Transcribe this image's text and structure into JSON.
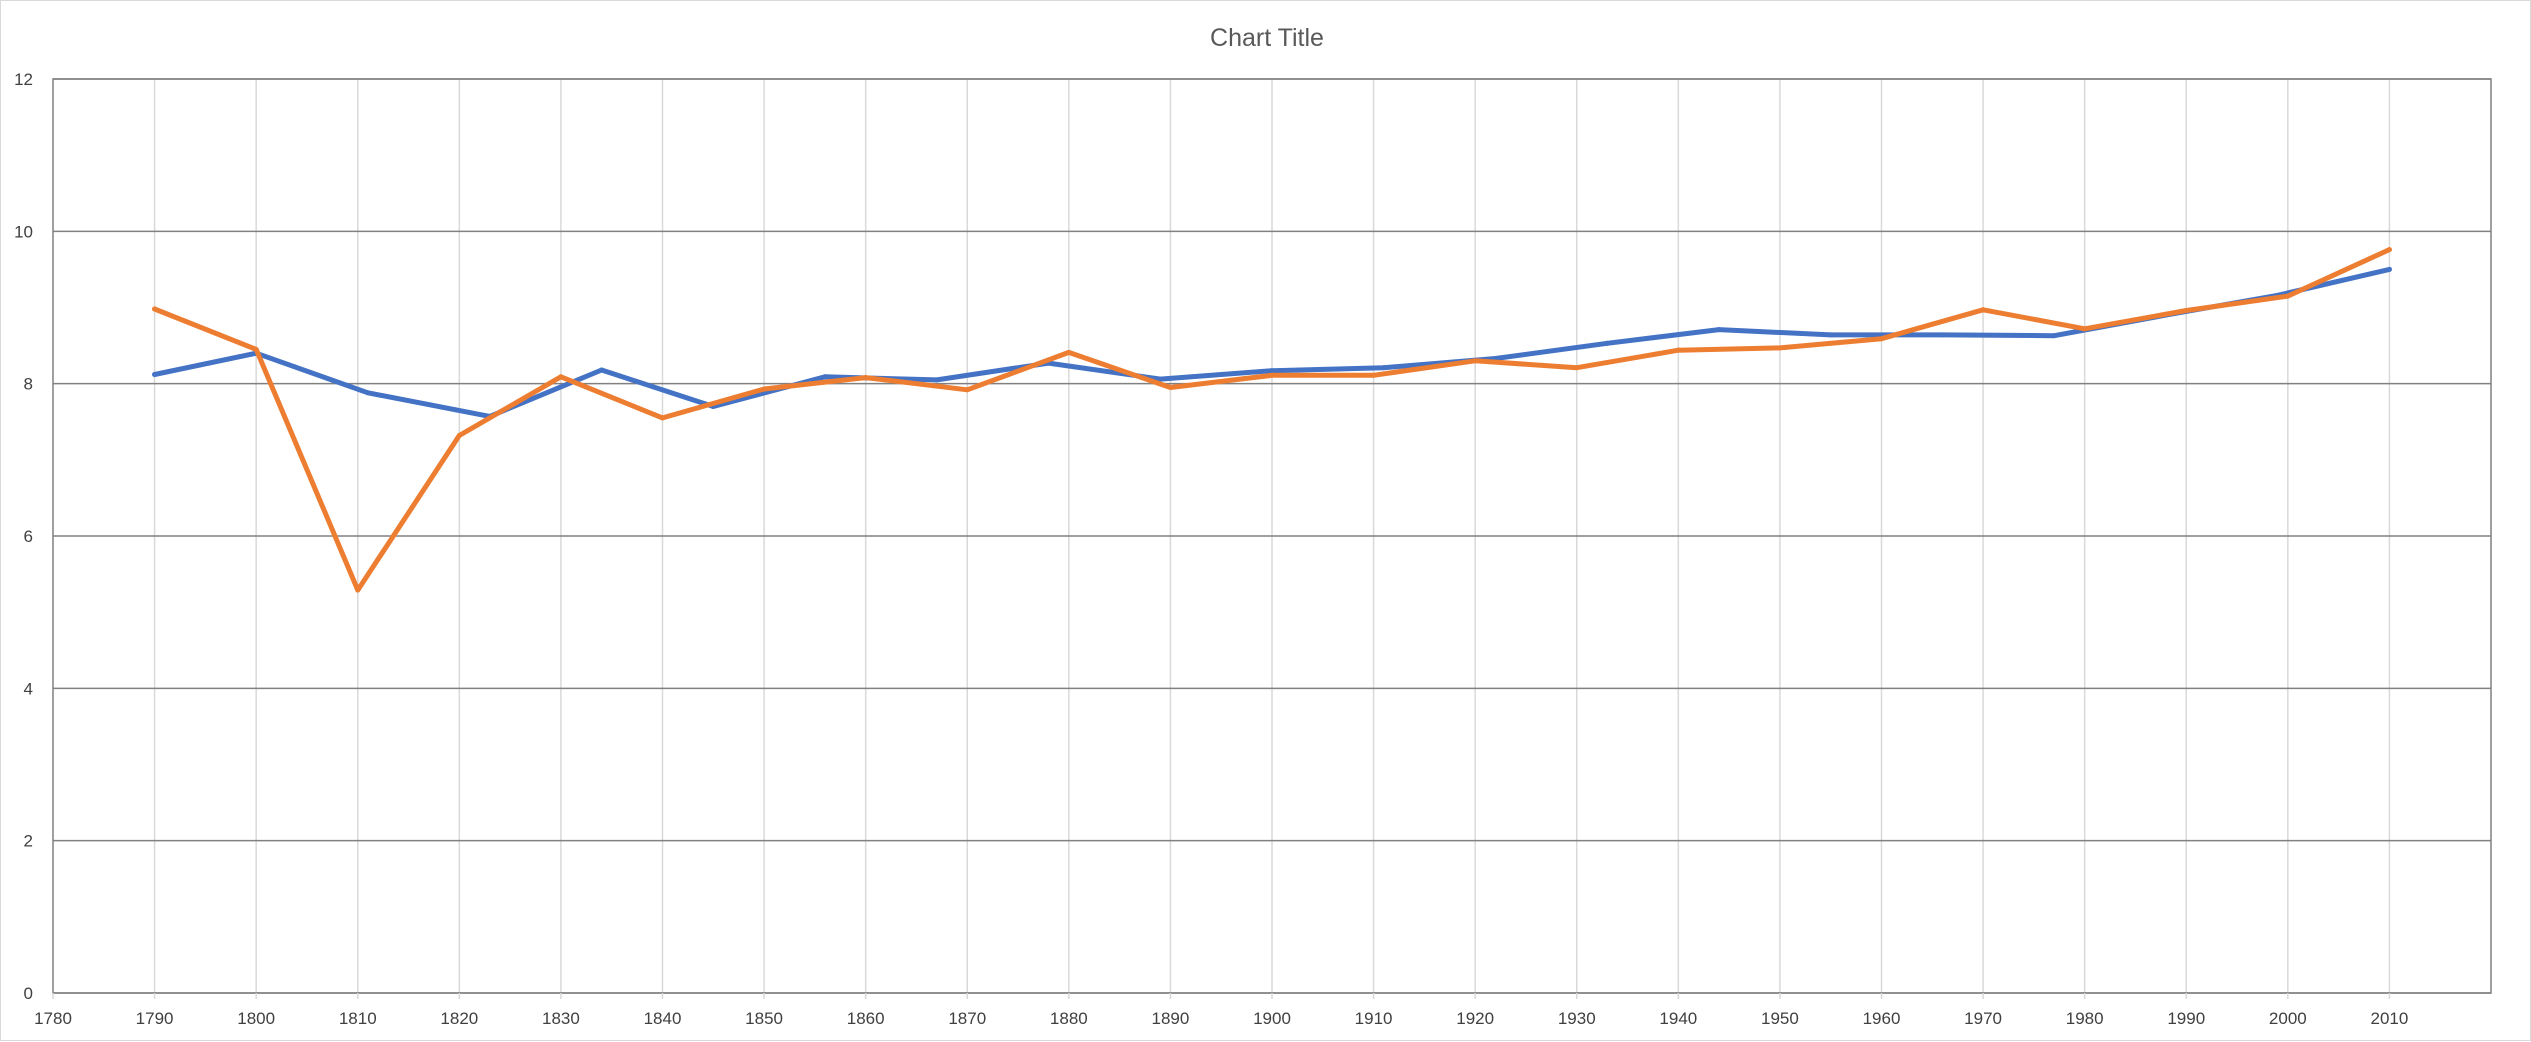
{
  "chart_data": {
    "type": "scatter",
    "title": "Chart Title",
    "xlabel": "",
    "ylabel": "",
    "xlim": [
      1780,
      2020
    ],
    "ylim": [
      0,
      12
    ],
    "x_ticks": [
      1780,
      1790,
      1800,
      1810,
      1820,
      1830,
      1840,
      1850,
      1860,
      1870,
      1880,
      1890,
      1900,
      1910,
      1920,
      1930,
      1940,
      1950,
      1960,
      1970,
      1980,
      1990,
      2000,
      2010
    ],
    "x_tick_labels": [
      "1780",
      "1790",
      "1800",
      "1810",
      "1820",
      "1830",
      "1840",
      "1850",
      "1860",
      "1870",
      "1880",
      "1890",
      "1900",
      "1910",
      "1920",
      "1930",
      "1940",
      "1950",
      "1960",
      "1970",
      "1980",
      "1990",
      "2000",
      "2010"
    ],
    "y_ticks": [
      0,
      2,
      4,
      6,
      8,
      10,
      12
    ],
    "y_tick_labels": [
      "0",
      "2",
      "4",
      "6",
      "8",
      "10",
      "12"
    ],
    "grid": {
      "vertical": true,
      "horizontal": true
    },
    "legend": "none",
    "series": [
      {
        "color": "#4472C4",
        "x": [
          1790,
          1800,
          1811,
          1823,
          1834,
          1845,
          1856,
          1867,
          1878,
          1889,
          1900,
          1911,
          1922,
          1933,
          1944,
          1955,
          1966,
          1977,
          1988,
          1999,
          2010
        ],
        "y": [
          8.12,
          8.4,
          7.88,
          7.57,
          8.18,
          7.7,
          8.09,
          8.05,
          8.27,
          8.06,
          8.17,
          8.21,
          8.33,
          8.53,
          8.71,
          8.64,
          8.64,
          8.63,
          8.9,
          9.16,
          9.5
        ]
      },
      {
        "color": "#ED7D31",
        "x": [
          1790,
          1800,
          1810,
          1820,
          1830,
          1840,
          1850,
          1860,
          1870,
          1880,
          1890,
          1900,
          1910,
          1920,
          1930,
          1940,
          1950,
          1960,
          1970,
          1980,
          1990,
          2000,
          2010
        ],
        "y": [
          8.98,
          8.45,
          5.29,
          7.32,
          8.09,
          7.55,
          7.93,
          8.08,
          7.92,
          8.41,
          7.95,
          8.11,
          8.11,
          8.3,
          8.21,
          8.44,
          8.47,
          8.59,
          8.97,
          8.72,
          8.96,
          9.15,
          9.76
        ]
      }
    ],
    "colors": {
      "plot_border": "#808080",
      "major_grid": "#808080",
      "minor_grid": "#d9d9d9",
      "text": "#595959"
    }
  }
}
